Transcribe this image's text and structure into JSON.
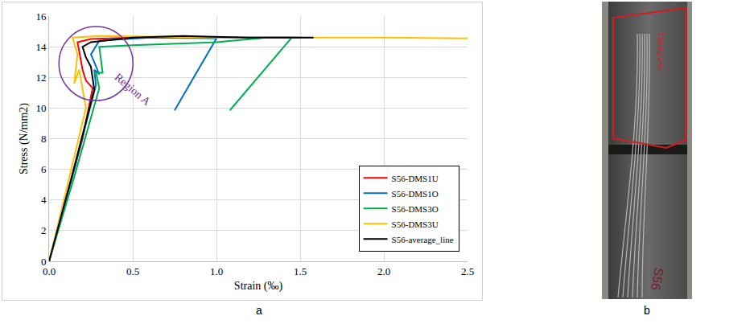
{
  "chart_data": {
    "type": "line",
    "panel_label": "a",
    "x_label": "Strain (‰)",
    "y_label": "Stress (N/mm2)",
    "xlim": [
      0,
      2.5
    ],
    "xticks": [
      {
        "value": 0,
        "label": "0.0"
      },
      {
        "value": 0.5,
        "label": "0.5"
      },
      {
        "value": 1,
        "label": "1.0"
      },
      {
        "value": 1.5,
        "label": "1.5"
      },
      {
        "value": 2,
        "label": "2.0"
      },
      {
        "value": 2.5,
        "label": "2.5"
      }
    ],
    "ylim": [
      0,
      16
    ],
    "yticks": [
      0,
      2,
      4,
      6,
      8,
      10,
      12,
      14,
      16
    ],
    "grid": true,
    "legend": "lower right",
    "annotations": [
      {
        "text": "Region A",
        "x": 0.5,
        "y": 11.2,
        "color": "#7030a0"
      }
    ],
    "series": [
      {
        "name": "S56-DMS1U",
        "color": "#ff0000",
        "x": [
          0,
          0.1,
          0.2,
          0.26,
          0.22,
          0.2,
          0.17,
          0.25,
          0.5,
          1.0,
          1.5
        ],
        "values": [
          0,
          4,
          8,
          11.3,
          11.8,
          12.5,
          14.3,
          14.5,
          14.6,
          14.6,
          14.6
        ]
      },
      {
        "name": "S56-DMS1O",
        "color": "#0070c0",
        "x": [
          0,
          0.15,
          0.28,
          0.27,
          0.3,
          0.25,
          0.3,
          0.6,
          1.0,
          0.75
        ],
        "values": [
          0,
          6,
          11.5,
          12.5,
          12.2,
          13.5,
          14.4,
          14.6,
          14.55,
          9.85
        ]
      },
      {
        "name": "S56-DMS3O",
        "color": "#00b050",
        "x": [
          0,
          0.15,
          0.3,
          0.28,
          0.32,
          0.3,
          0.5,
          1.0,
          1.3,
          1.45,
          1.08
        ],
        "values": [
          0,
          5.5,
          11.3,
          12.3,
          12.3,
          14.0,
          14.1,
          14.3,
          14.6,
          14.6,
          9.85
        ]
      },
      {
        "name": "S56-DMS3U",
        "color": "#ffc000",
        "x": [
          0,
          0.1,
          0.22,
          0.18,
          0.15,
          0.17,
          0.14,
          0.3,
          1.0,
          2.0,
          2.5
        ],
        "values": [
          0,
          4.5,
          10,
          12.5,
          11.6,
          13.5,
          14.6,
          14.7,
          14.6,
          14.6,
          14.55
        ]
      },
      {
        "name": "S56-average_line",
        "color": "#000000",
        "x": [
          0,
          0.13,
          0.27,
          0.25,
          0.22,
          0.2,
          0.25,
          0.5,
          0.8,
          1.2,
          1.58
        ],
        "values": [
          0,
          5.3,
          11.2,
          12.7,
          13.3,
          14.0,
          14.3,
          14.6,
          14.7,
          14.6,
          14.6
        ]
      }
    ]
  },
  "photo": {
    "panel_label": "b",
    "texts": [
      "Testing area",
      "S56"
    ]
  }
}
